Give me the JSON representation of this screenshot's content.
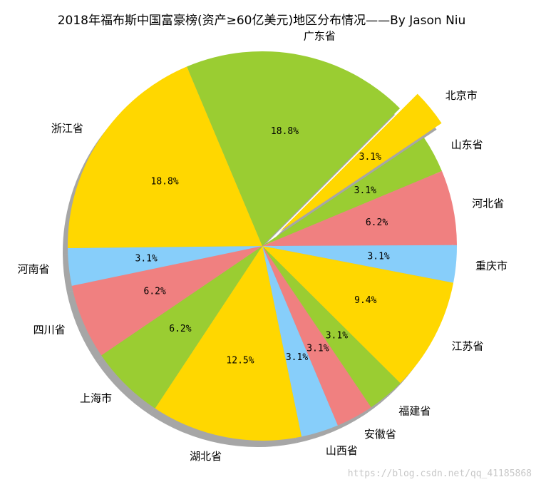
{
  "chart_data": {
    "type": "pie",
    "title": "2018年福布斯中国富豪榜(资产≥60亿美元)地区分布情况——By Jason Niu",
    "categories": [
      "北京市",
      "山东省",
      "河北省",
      "重庆市",
      "江苏省",
      "福建省",
      "安徽省",
      "山西省",
      "湖北省",
      "上海市",
      "四川省",
      "河南省",
      "浙江省",
      "广东省"
    ],
    "values": [
      3.1,
      3.1,
      6.2,
      3.1,
      9.4,
      3.1,
      3.1,
      3.1,
      12.5,
      6.2,
      6.2,
      3.1,
      18.8,
      18.8
    ],
    "percent_labels": [
      "3.1%",
      "3.1%",
      "6.2%",
      "3.1%",
      "9.4%",
      "3.1%",
      "3.1%",
      "3.1%",
      "12.5%",
      "6.2%",
      "6.2%",
      "3.1%",
      "18.8%",
      "18.8%"
    ],
    "colors": [
      "#FFD700",
      "#9ACD32",
      "#F08080",
      "#87CEFA",
      "#FFD700",
      "#9ACD32",
      "#F08080",
      "#87CEFA",
      "#FFD700",
      "#9ACD32",
      "#F08080",
      "#87CEFA",
      "#FFD700",
      "#9ACD32"
    ],
    "exploded": [
      "北京市"
    ],
    "shadow": true,
    "start_angle_deg": 45,
    "direction": "clockwise"
  },
  "watermark": "https://blog.csdn.net/qq_41185868"
}
